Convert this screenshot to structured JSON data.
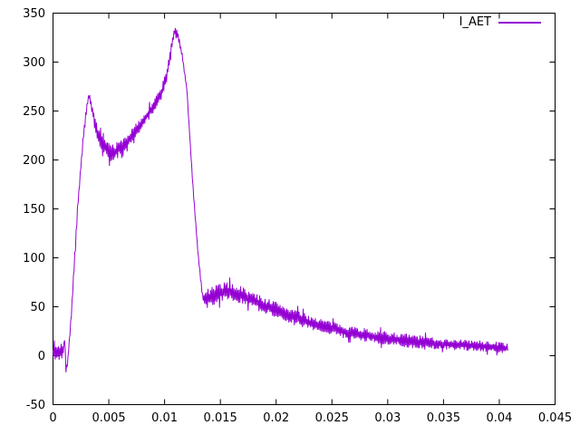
{
  "window": {
    "background": "#ffffff",
    "border_color": "#000000",
    "text_color": "#000000"
  },
  "legend": {
    "label": "I_AET"
  },
  "chart_data": {
    "type": "line",
    "title": "",
    "xlabel": "",
    "ylabel": "",
    "xlim": [
      0,
      0.045
    ],
    "ylim": [
      -50,
      350
    ],
    "grid": false,
    "legend_position": "top-right-inside",
    "xticks": [
      0,
      0.005,
      0.01,
      0.015,
      0.02,
      0.025,
      0.03,
      0.035,
      0.04,
      0.045
    ],
    "xtick_labels": [
      "0",
      "0.005",
      "0.01",
      "0.015",
      "0.02",
      "0.025",
      "0.03",
      "0.035",
      "0.04",
      "0.045"
    ],
    "yticks": [
      -50,
      0,
      50,
      100,
      150,
      200,
      250,
      300,
      350
    ],
    "ytick_labels": [
      "-50",
      "0",
      "50",
      "100",
      "150",
      "200",
      "250",
      "300",
      "350"
    ],
    "series": [
      {
        "name": "I_AET",
        "color": "#9400d3",
        "style": "noisy-line",
        "noise_seed": 7,
        "points_note": "each point = [x, center_value, noise_half_amplitude]",
        "points": [
          [
            0.0,
            3,
            6
          ],
          [
            0.0004,
            3,
            6
          ],
          [
            0.0008,
            4,
            7
          ],
          [
            0.001,
            10,
            5
          ],
          [
            0.00105,
            22,
            2
          ],
          [
            0.00115,
            -13,
            2
          ],
          [
            0.0013,
            -8,
            2
          ],
          [
            0.0016,
            35,
            3
          ],
          [
            0.0022,
            150,
            3
          ],
          [
            0.0027,
            222,
            3
          ],
          [
            0.003,
            252,
            3
          ],
          [
            0.0032,
            266,
            2
          ],
          [
            0.0034,
            258,
            4
          ],
          [
            0.0037,
            240,
            5
          ],
          [
            0.0041,
            224,
            6
          ],
          [
            0.0046,
            213,
            6
          ],
          [
            0.0051,
            208,
            7
          ],
          [
            0.0055,
            207,
            7
          ],
          [
            0.0059,
            211,
            6
          ],
          [
            0.0067,
            220,
            5
          ],
          [
            0.0075,
            231,
            5
          ],
          [
            0.0083,
            243,
            5
          ],
          [
            0.0091,
            256,
            5
          ],
          [
            0.0097,
            268,
            5
          ],
          [
            0.0102,
            287,
            5
          ],
          [
            0.0106,
            315,
            4
          ],
          [
            0.0109,
            333,
            3
          ],
          [
            0.0112,
            327,
            3
          ],
          [
            0.0116,
            305,
            2
          ],
          [
            0.012,
            272,
            1
          ],
          [
            0.0125,
            180,
            1
          ],
          [
            0.013,
            104,
            1
          ],
          [
            0.0134,
            60,
            3
          ],
          [
            0.0138,
            58,
            7
          ],
          [
            0.0143,
            61,
            7
          ],
          [
            0.015,
            64,
            7
          ],
          [
            0.0156,
            66,
            7
          ],
          [
            0.0162,
            64,
            7
          ],
          [
            0.0168,
            62,
            7
          ],
          [
            0.0174,
            59,
            6
          ],
          [
            0.018,
            56,
            6
          ],
          [
            0.019,
            51,
            6
          ],
          [
            0.02,
            47,
            6
          ],
          [
            0.021,
            42,
            6
          ],
          [
            0.022,
            38,
            6
          ],
          [
            0.023,
            34,
            5
          ],
          [
            0.024,
            31,
            5
          ],
          [
            0.025,
            28,
            5
          ],
          [
            0.026,
            25,
            5
          ],
          [
            0.0275,
            22,
            5
          ],
          [
            0.029,
            19,
            5
          ],
          [
            0.0305,
            17,
            5
          ],
          [
            0.032,
            15,
            5
          ],
          [
            0.0335,
            13,
            5
          ],
          [
            0.035,
            12,
            4
          ],
          [
            0.0365,
            11,
            4
          ],
          [
            0.038,
            10,
            4
          ],
          [
            0.0395,
            9,
            4
          ],
          [
            0.0405,
            8,
            4
          ],
          [
            0.0408,
            7,
            4
          ]
        ]
      }
    ]
  }
}
